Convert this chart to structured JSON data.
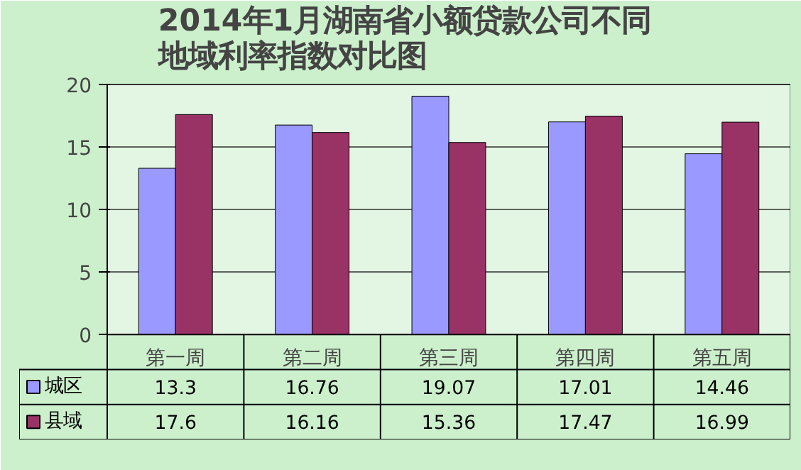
{
  "chart_data": {
    "type": "bar",
    "title": "2014年1月湖南省小额贷款公司不同地域利率指数对比图",
    "categories": [
      "第一周",
      "第二周",
      "第三周",
      "第四周",
      "第五周"
    ],
    "series": [
      {
        "name": "城区",
        "color": "#9999ff",
        "values": [
          13.3,
          16.76,
          19.07,
          17.01,
          14.46
        ]
      },
      {
        "name": "县域",
        "color": "#993366",
        "values": [
          17.6,
          16.16,
          15.36,
          17.47,
          16.99
        ]
      }
    ],
    "ylim": [
      0,
      20
    ],
    "yticks": [
      0,
      5,
      10,
      15,
      20
    ],
    "grid": "y",
    "data_labels": true,
    "legend": "bottom left"
  }
}
